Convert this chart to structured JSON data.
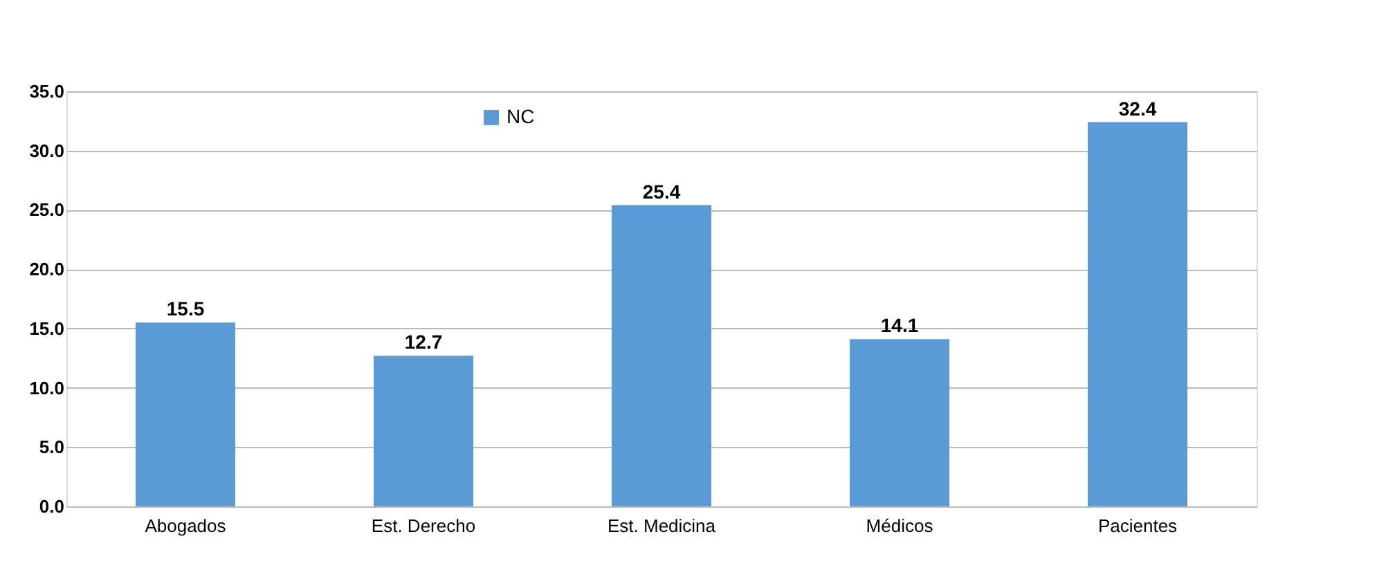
{
  "chart_data": {
    "type": "bar",
    "categories": [
      "Abogados",
      "Est. Derecho",
      "Est. Medicina",
      "Médicos",
      "Pacientes"
    ],
    "series": [
      {
        "name": "NC",
        "color": "#5b9bd5",
        "values": [
          15.5,
          12.7,
          25.4,
          14.1,
          32.4
        ]
      }
    ],
    "ylim": [
      0,
      35
    ],
    "yticks": [
      {
        "value": 0,
        "label": "0.0"
      },
      {
        "value": 5,
        "label": "5.0"
      },
      {
        "value": 10,
        "label": "10.0"
      },
      {
        "value": 15,
        "label": "15.0"
      },
      {
        "value": 20,
        "label": "20.0"
      },
      {
        "value": 25,
        "label": "25.0"
      },
      {
        "value": 30,
        "label": "30.0"
      },
      {
        "value": 35,
        "label": "35.0"
      }
    ],
    "grid": "y",
    "legend": "top",
    "data_labels": true
  }
}
